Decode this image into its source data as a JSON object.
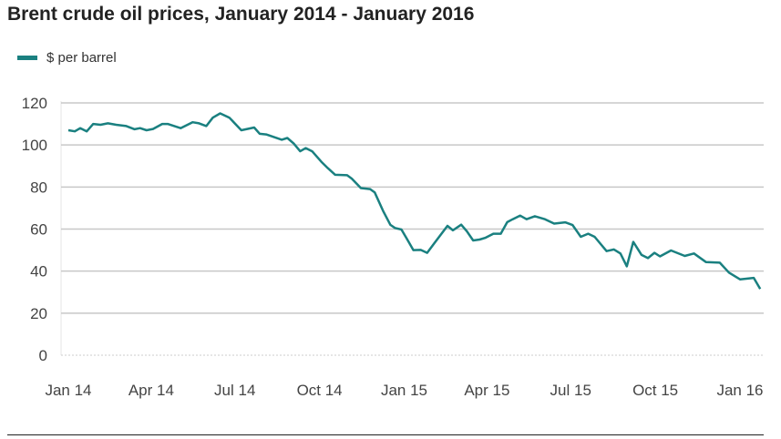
{
  "chart_data": {
    "type": "line",
    "title": "Brent crude oil prices, January 2014 - January 2016",
    "xlabel": "",
    "ylabel": "",
    "ylim": [
      0,
      120
    ],
    "yticks": [
      0,
      20,
      40,
      60,
      80,
      100,
      120
    ],
    "xticks": [
      {
        "date": "2014-01-01",
        "label": "Jan 14"
      },
      {
        "date": "2014-04-01",
        "label": "Apr 14"
      },
      {
        "date": "2014-07-01",
        "label": "Jul 14"
      },
      {
        "date": "2014-10-01",
        "label": "Oct 14"
      },
      {
        "date": "2015-01-01",
        "label": "Jan 15"
      },
      {
        "date": "2015-04-01",
        "label": "Apr 15"
      },
      {
        "date": "2015-07-01",
        "label": "Jul 15"
      },
      {
        "date": "2015-10-01",
        "label": "Oct 15"
      },
      {
        "date": "2016-01-01",
        "label": "Jan 16"
      }
    ],
    "grid": true,
    "legend_placement": "top-left",
    "series": [
      {
        "name": "$ per barrel",
        "color": "#1a8080",
        "points": [
          [
            "2014-01-01",
            107
          ],
          [
            "2014-01-08",
            106.5
          ],
          [
            "2014-01-14",
            108
          ],
          [
            "2014-01-21",
            106.5
          ],
          [
            "2014-01-28",
            110
          ],
          [
            "2014-02-05",
            109.6
          ],
          [
            "2014-02-13",
            110.3
          ],
          [
            "2014-02-22",
            109.6
          ],
          [
            "2014-03-05",
            109
          ],
          [
            "2014-03-14",
            107.5
          ],
          [
            "2014-03-20",
            108
          ],
          [
            "2014-03-27",
            107
          ],
          [
            "2014-04-03",
            107.6
          ],
          [
            "2014-04-13",
            110
          ],
          [
            "2014-04-19",
            110
          ],
          [
            "2014-05-03",
            108
          ],
          [
            "2014-05-16",
            110.8
          ],
          [
            "2014-05-23",
            110.3
          ],
          [
            "2014-05-31",
            109
          ],
          [
            "2014-06-07",
            113
          ],
          [
            "2014-06-15",
            115
          ],
          [
            "2014-06-25",
            113
          ],
          [
            "2014-07-08",
            107
          ],
          [
            "2014-07-22",
            108.3
          ],
          [
            "2014-07-28",
            105.3
          ],
          [
            "2014-08-04",
            105
          ],
          [
            "2014-08-21",
            102.5
          ],
          [
            "2014-08-27",
            103.3
          ],
          [
            "2014-09-03",
            100.7
          ],
          [
            "2014-09-10",
            97
          ],
          [
            "2014-09-16",
            98.5
          ],
          [
            "2014-09-23",
            97
          ],
          [
            "2014-10-03",
            92
          ],
          [
            "2014-10-10",
            89
          ],
          [
            "2014-10-18",
            85.8
          ],
          [
            "2014-10-31",
            85.6
          ],
          [
            "2014-11-05",
            84
          ],
          [
            "2014-11-15",
            79.5
          ],
          [
            "2014-11-25",
            79
          ],
          [
            "2014-11-30",
            77.4
          ],
          [
            "2014-12-09",
            68.7
          ],
          [
            "2014-12-17",
            62
          ],
          [
            "2014-12-22",
            60.5
          ],
          [
            "2014-12-29",
            59.8
          ],
          [
            "2015-01-04",
            55.3
          ],
          [
            "2015-01-11",
            50
          ],
          [
            "2015-01-19",
            50.1
          ],
          [
            "2015-01-26",
            48.7
          ],
          [
            "2015-02-03",
            53.4
          ],
          [
            "2015-02-17",
            61.5
          ],
          [
            "2015-02-23",
            59.4
          ],
          [
            "2015-03-04",
            62.1
          ],
          [
            "2015-03-10",
            59
          ],
          [
            "2015-03-17",
            54.6
          ],
          [
            "2015-03-24",
            55
          ],
          [
            "2015-03-30",
            55.8
          ],
          [
            "2015-04-08",
            57.8
          ],
          [
            "2015-04-16",
            57.8
          ],
          [
            "2015-04-23",
            63.3
          ],
          [
            "2015-04-29",
            64.7
          ],
          [
            "2015-05-07",
            66.4
          ],
          [
            "2015-05-14",
            64.7
          ],
          [
            "2015-05-23",
            66.1
          ],
          [
            "2015-06-03",
            64.7
          ],
          [
            "2015-06-13",
            62.6
          ],
          [
            "2015-06-25",
            63.2
          ],
          [
            "2015-07-03",
            61.9
          ],
          [
            "2015-07-12",
            56.3
          ],
          [
            "2015-07-20",
            57.8
          ],
          [
            "2015-07-27",
            56.3
          ],
          [
            "2015-08-09",
            49.5
          ],
          [
            "2015-08-17",
            50.3
          ],
          [
            "2015-08-24",
            48.4
          ],
          [
            "2015-08-31",
            42.3
          ],
          [
            "2015-09-07",
            53.9
          ],
          [
            "2015-09-16",
            47.7
          ],
          [
            "2015-09-23",
            46.2
          ],
          [
            "2015-09-30",
            48.7
          ],
          [
            "2015-10-06",
            47
          ],
          [
            "2015-10-18",
            49.8
          ],
          [
            "2015-11-02",
            47.2
          ],
          [
            "2015-11-12",
            48.4
          ],
          [
            "2015-11-25",
            44.3
          ],
          [
            "2015-12-10",
            44
          ],
          [
            "2015-12-20",
            39.3
          ],
          [
            "2016-01-01",
            36.1
          ],
          [
            "2016-01-16",
            36.8
          ],
          [
            "2016-01-23",
            31.5
          ]
        ]
      }
    ]
  }
}
